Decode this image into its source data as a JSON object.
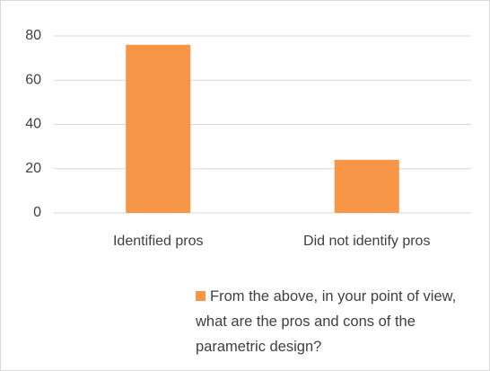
{
  "chart_data": {
    "type": "bar",
    "categories": [
      "Identified pros",
      "Did not identify pros"
    ],
    "series": [
      {
        "name": "From the above, in your point of view, what are the pros and cons of the parametric design?",
        "color": "#f79646",
        "values": [
          76,
          24
        ]
      }
    ],
    "ylim": [
      0,
      80
    ],
    "yticks": [
      0,
      20,
      40,
      60,
      80
    ],
    "grid": true,
    "legend": "bottom"
  }
}
